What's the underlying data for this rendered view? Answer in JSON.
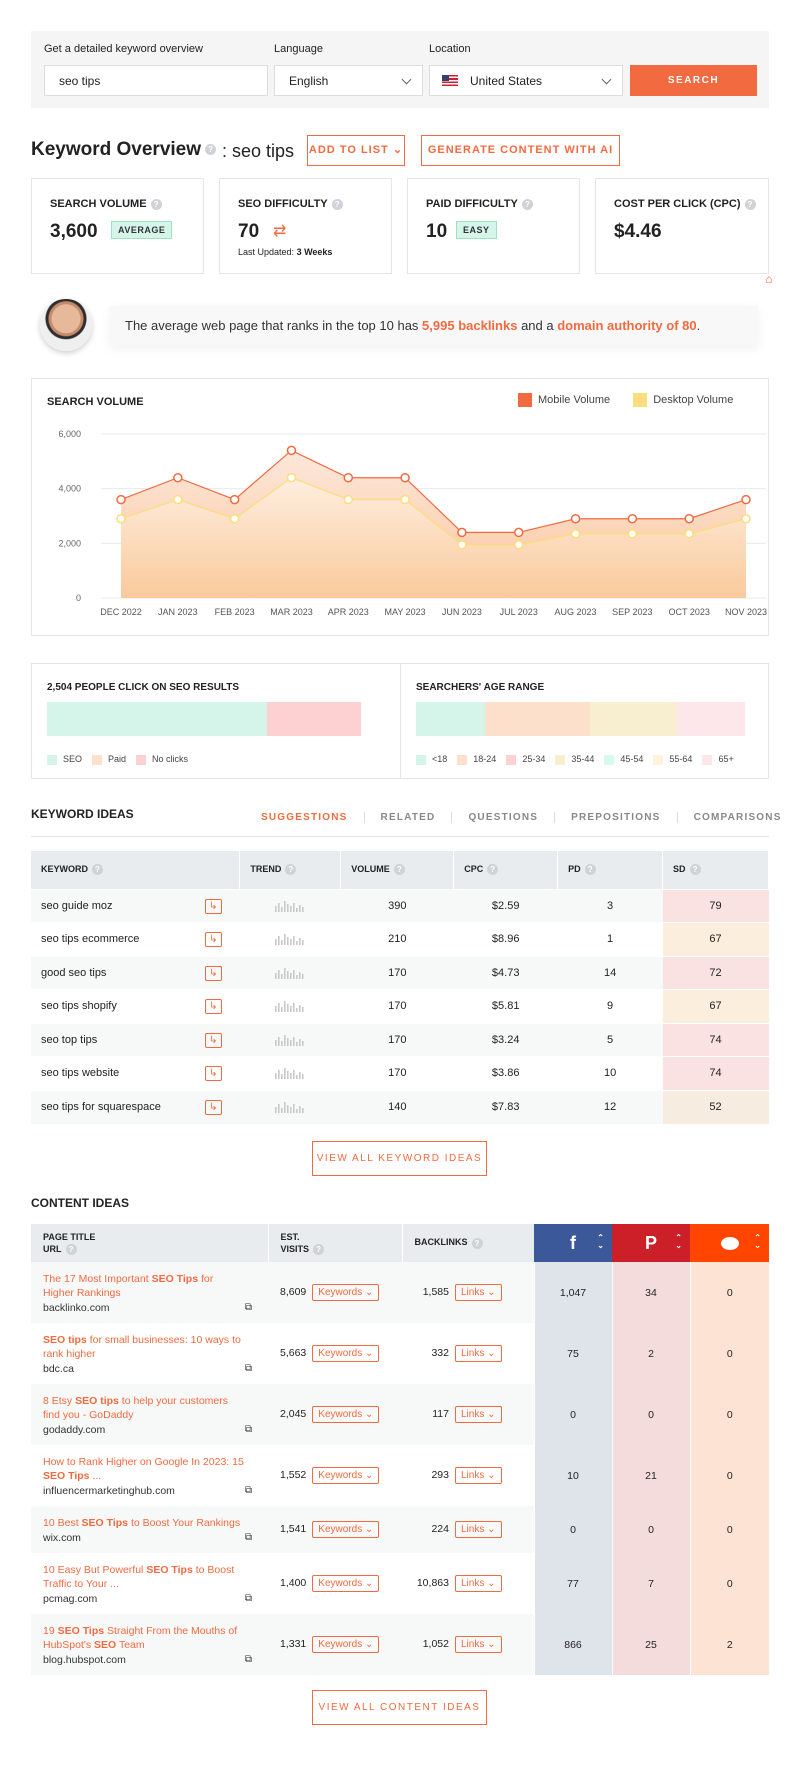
{
  "search": {
    "keyword_label": "Get a detailed keyword overview",
    "keyword_value": "seo tips",
    "language_label": "Language",
    "language_value": "English",
    "location_label": "Location",
    "location_value": "United States",
    "button": "SEARCH"
  },
  "overview": {
    "title": "Keyword Overview",
    "keyword": ": seo tips",
    "add_to_list": "ADD TO LIST",
    "generate": "GENERATE CONTENT WITH AI"
  },
  "metrics": {
    "search_volume": {
      "label": "SEARCH VOLUME",
      "value": "3,600",
      "badge": "AVERAGE"
    },
    "seo_difficulty": {
      "label": "SEO DIFFICULTY",
      "value": "70",
      "updated_label": "Last Updated:",
      "updated_value": "3 Weeks"
    },
    "paid_difficulty": {
      "label": "PAID DIFFICULTY",
      "value": "10",
      "badge": "EASY"
    },
    "cpc": {
      "label": "COST PER CLICK (CPC)",
      "value": "$4.46"
    }
  },
  "backlinks_note": {
    "pre": "The average web page that ranks in the top 10 has ",
    "backlinks": "5,995 backlinks",
    "mid": " and a ",
    "authority": "domain authority of 80",
    "post": "."
  },
  "chart_data": {
    "type": "line",
    "title": "SEARCH VOLUME",
    "categories": [
      "DEC 2022",
      "JAN 2023",
      "FEB 2023",
      "MAR 2023",
      "APR 2023",
      "MAY 2023",
      "JUN 2023",
      "JUL 2023",
      "AUG 2023",
      "SEP 2023",
      "OCT 2023",
      "NOV 2023"
    ],
    "series": [
      {
        "name": "Mobile Volume",
        "color": "#f26a3f",
        "values": [
          3600,
          4400,
          3600,
          5400,
          4400,
          4400,
          2400,
          2400,
          2900,
          2900,
          2900,
          3600
        ]
      },
      {
        "name": "Desktop Volume",
        "color": "#fddc7a",
        "values": [
          2900,
          3600,
          2900,
          4400,
          3600,
          3600,
          1950,
          1950,
          2350,
          2350,
          2350,
          2900
        ]
      }
    ],
    "yticks": [
      "0",
      "2,000",
      "4,000",
      "6,000"
    ],
    "ylim": [
      0,
      6000
    ],
    "grid": true,
    "legend": "top-right"
  },
  "clicks": {
    "title": "2,504 PEOPLE CLICK ON SEO RESULTS",
    "seo_share": 0.7,
    "paid_share": 0,
    "noclick_share": 0.3,
    "legend": [
      "SEO",
      "Paid",
      "No clicks"
    ],
    "colors": {
      "seo": "#d6f5ea",
      "paid": "#fde0cc",
      "noclick": "#fdd0d2"
    }
  },
  "age": {
    "title": "SEARCHERS' AGE RANGE",
    "legend": [
      "<18",
      "18-24",
      "25-34",
      "35-44",
      "45-54",
      "55-64",
      "65+"
    ],
    "colors": [
      "#d6f5ea",
      "#fde0cc",
      "#fdd0d2",
      "#f8efd0",
      "#d6fbee",
      "#fdf3dc",
      "#fde7ea"
    ]
  },
  "keyword_ideas": {
    "title": "KEYWORD IDEAS",
    "tabs": [
      "SUGGESTIONS",
      "RELATED",
      "QUESTIONS",
      "PREPOSITIONS",
      "COMPARISONS"
    ],
    "headers": [
      "KEYWORD",
      "TREND",
      "VOLUME",
      "CPC",
      "PD",
      "SD"
    ],
    "rows": [
      {
        "keyword": "seo guide moz",
        "volume": "390",
        "cpc": "$2.59",
        "pd": "3",
        "sd": "79"
      },
      {
        "keyword": "seo tips ecommerce",
        "volume": "210",
        "cpc": "$8.96",
        "pd": "1",
        "sd": "67"
      },
      {
        "keyword": "good seo tips",
        "volume": "170",
        "cpc": "$4.73",
        "pd": "14",
        "sd": "72"
      },
      {
        "keyword": "seo tips shopify",
        "volume": "170",
        "cpc": "$5.81",
        "pd": "9",
        "sd": "67"
      },
      {
        "keyword": "seo top tips",
        "volume": "170",
        "cpc": "$3.24",
        "pd": "5",
        "sd": "74"
      },
      {
        "keyword": "seo tips website",
        "volume": "170",
        "cpc": "$3.86",
        "pd": "10",
        "sd": "74"
      },
      {
        "keyword": "seo tips for squarespace",
        "volume": "140",
        "cpc": "$7.83",
        "pd": "12",
        "sd": "52"
      }
    ],
    "view_all": "VIEW ALL KEYWORD IDEAS"
  },
  "content_ideas": {
    "title": "CONTENT IDEAS",
    "headers": {
      "page": "PAGE TITLE",
      "url": "URL",
      "visits1": "EST.",
      "visits2": "VISITS",
      "backlinks": "BACKLINKS"
    },
    "keywords_btn": "Keywords",
    "links_btn": "Links",
    "rows": [
      {
        "t1": "The 17 Most Important ",
        "b1": "SEO Tips",
        "t2": " for Higher Rankings",
        "b2": "",
        "t3": "",
        "url": "backlinko.com",
        "visits": "8,609",
        "backlinks": "1,585",
        "fb": "1,047",
        "pin": "34",
        "red": "0"
      },
      {
        "t1": "",
        "b1": "SEO tips",
        "t2": " for small businesses: 10 ways to rank higher",
        "b2": "",
        "t3": "",
        "url": "bdc.ca",
        "visits": "5,663",
        "backlinks": "332",
        "fb": "75",
        "pin": "2",
        "red": "0"
      },
      {
        "t1": "8 Etsy ",
        "b1": "SEO tips",
        "t2": " to help your customers find you - GoDaddy",
        "b2": "",
        "t3": "",
        "url": "godaddy.com",
        "visits": "2,045",
        "backlinks": "117",
        "fb": "0",
        "pin": "0",
        "red": "0"
      },
      {
        "t1": "How to Rank Higher on Google In 2023: 15 ",
        "b1": "SEO Tips",
        "t2": " ...",
        "b2": "",
        "t3": "",
        "url": "influencermarketinghub.com",
        "visits": "1,552",
        "backlinks": "293",
        "fb": "10",
        "pin": "21",
        "red": "0"
      },
      {
        "t1": "10 Best ",
        "b1": "SEO Tips",
        "t2": " to Boost Your Rankings",
        "b2": "",
        "t3": "",
        "url": "wix.com",
        "visits": "1,541",
        "backlinks": "224",
        "fb": "0",
        "pin": "0",
        "red": "0"
      },
      {
        "t1": "10 Easy But Powerful ",
        "b1": "SEO Tips",
        "t2": " to Boost Traffic to Your ...",
        "b2": "",
        "t3": "",
        "url": "pcmag.com",
        "visits": "1,400",
        "backlinks": "10,863",
        "fb": "77",
        "pin": "7",
        "red": "0"
      },
      {
        "t1": "19 ",
        "b1": "SEO Tips",
        "t2": " Straight From the Mouths of HubSpot's ",
        "b2": "SEO",
        "t3": " Team",
        "url": "blog.hubspot.com",
        "visits": "1,331",
        "backlinks": "1,052",
        "fb": "866",
        "pin": "25",
        "red": "2"
      }
    ],
    "view_all": "VIEW ALL CONTENT IDEAS"
  },
  "colors": {
    "accent": "#f26a3f",
    "facebook": "#3b5998",
    "pinterest": "#cb2027",
    "reddit": "#ff4500"
  }
}
